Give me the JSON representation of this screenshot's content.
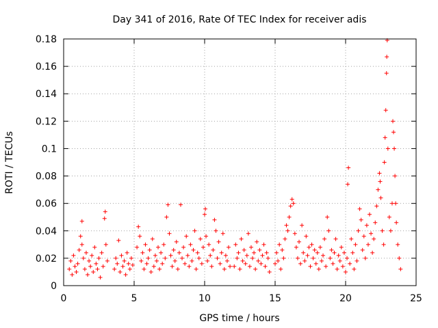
{
  "chart_data": {
    "type": "scatter",
    "title": "Day 341 of 2016, Rate Of TEC Index for receiver adis",
    "xlabel": "GPS time / hours",
    "ylabel": "ROTI / TECUs",
    "xlim": [
      0,
      25
    ],
    "ylim": [
      0,
      0.18
    ],
    "xticks": [
      0,
      5,
      10,
      15,
      20,
      25
    ],
    "yticks": [
      0,
      0.02,
      0.04,
      0.06,
      0.08,
      0.1,
      0.12,
      0.14,
      0.16,
      0.18
    ],
    "grid": true,
    "marker": "+",
    "color": "#ff0000",
    "series": [
      {
        "name": "ROTI",
        "points": [
          [
            0.4,
            0.012
          ],
          [
            0.5,
            0.018
          ],
          [
            0.6,
            0.008
          ],
          [
            0.7,
            0.022
          ],
          [
            0.8,
            0.014
          ],
          [
            0.9,
            0.01
          ],
          [
            1.0,
            0.016
          ],
          [
            1.1,
            0.026
          ],
          [
            1.2,
            0.036
          ],
          [
            1.3,
            0.047
          ],
          [
            1.3,
            0.03
          ],
          [
            1.4,
            0.02
          ],
          [
            1.5,
            0.012
          ],
          [
            1.6,
            0.024
          ],
          [
            1.7,
            0.008
          ],
          [
            1.8,
            0.018
          ],
          [
            1.9,
            0.014
          ],
          [
            2.0,
            0.022
          ],
          [
            2.1,
            0.01
          ],
          [
            2.2,
            0.028
          ],
          [
            2.3,
            0.016
          ],
          [
            2.4,
            0.012
          ],
          [
            2.5,
            0.02
          ],
          [
            2.6,
            0.006
          ],
          [
            2.7,
            0.024
          ],
          [
            2.8,
            0.014
          ],
          [
            2.9,
            0.049
          ],
          [
            2.95,
            0.054
          ],
          [
            3.0,
            0.03
          ],
          [
            3.1,
            0.018
          ],
          [
            3.6,
            0.012
          ],
          [
            3.7,
            0.02
          ],
          [
            3.8,
            0.016
          ],
          [
            3.9,
            0.033
          ],
          [
            4.0,
            0.01
          ],
          [
            4.1,
            0.022
          ],
          [
            4.2,
            0.014
          ],
          [
            4.3,
            0.018
          ],
          [
            4.4,
            0.008
          ],
          [
            4.5,
            0.024
          ],
          [
            4.6,
            0.016
          ],
          [
            4.7,
            0.012
          ],
          [
            4.8,
            0.02
          ],
          [
            4.9,
            0.015
          ],
          [
            5.2,
            0.028
          ],
          [
            5.3,
            0.043
          ],
          [
            5.4,
            0.036
          ],
          [
            5.5,
            0.018
          ],
          [
            5.6,
            0.024
          ],
          [
            5.7,
            0.012
          ],
          [
            5.8,
            0.03
          ],
          [
            5.9,
            0.016
          ],
          [
            6.0,
            0.02
          ],
          [
            6.1,
            0.026
          ],
          [
            6.2,
            0.01
          ],
          [
            6.3,
            0.034
          ],
          [
            6.4,
            0.014
          ],
          [
            6.5,
            0.022
          ],
          [
            6.6,
            0.018
          ],
          [
            6.7,
            0.028
          ],
          [
            6.8,
            0.012
          ],
          [
            6.9,
            0.024
          ],
          [
            7.0,
            0.016
          ],
          [
            7.1,
            0.03
          ],
          [
            7.2,
            0.02
          ],
          [
            7.3,
            0.05
          ],
          [
            7.4,
            0.059
          ],
          [
            7.5,
            0.038
          ],
          [
            7.6,
            0.022
          ],
          [
            7.7,
            0.014
          ],
          [
            7.8,
            0.026
          ],
          [
            7.9,
            0.018
          ],
          [
            8.0,
            0.032
          ],
          [
            8.1,
            0.012
          ],
          [
            8.2,
            0.024
          ],
          [
            8.3,
            0.059
          ],
          [
            8.4,
            0.02
          ],
          [
            8.5,
            0.028
          ],
          [
            8.6,
            0.016
          ],
          [
            8.7,
            0.036
          ],
          [
            8.8,
            0.022
          ],
          [
            8.9,
            0.014
          ],
          [
            9.0,
            0.03
          ],
          [
            9.1,
            0.018
          ],
          [
            9.2,
            0.026
          ],
          [
            9.3,
            0.04
          ],
          [
            9.4,
            0.012
          ],
          [
            9.5,
            0.024
          ],
          [
            9.6,
            0.02
          ],
          [
            9.7,
            0.034
          ],
          [
            9.8,
            0.016
          ],
          [
            9.9,
            0.028
          ],
          [
            10.0,
            0.052
          ],
          [
            10.05,
            0.056
          ],
          [
            10.1,
            0.036
          ],
          [
            10.2,
            0.018
          ],
          [
            10.3,
            0.03
          ],
          [
            10.4,
            0.022
          ],
          [
            10.5,
            0.014
          ],
          [
            10.6,
            0.026
          ],
          [
            10.7,
            0.048
          ],
          [
            10.8,
            0.04
          ],
          [
            10.9,
            0.02
          ],
          [
            11.0,
            0.032
          ],
          [
            11.1,
            0.016
          ],
          [
            11.2,
            0.024
          ],
          [
            11.3,
            0.038
          ],
          [
            11.4,
            0.012
          ],
          [
            11.5,
            0.022
          ],
          [
            11.6,
            0.018
          ],
          [
            11.7,
            0.028
          ],
          [
            11.8,
            0.014
          ],
          [
            12.1,
            0.014
          ],
          [
            12.2,
            0.03
          ],
          [
            12.3,
            0.02
          ],
          [
            12.4,
            0.024
          ],
          [
            12.5,
            0.012
          ],
          [
            12.6,
            0.034
          ],
          [
            12.7,
            0.018
          ],
          [
            12.8,
            0.026
          ],
          [
            12.9,
            0.016
          ],
          [
            13.0,
            0.022
          ],
          [
            13.1,
            0.038
          ],
          [
            13.2,
            0.014
          ],
          [
            13.3,
            0.028
          ],
          [
            13.4,
            0.02
          ],
          [
            13.5,
            0.024
          ],
          [
            13.6,
            0.012
          ],
          [
            13.7,
            0.032
          ],
          [
            13.8,
            0.018
          ],
          [
            13.9,
            0.026
          ],
          [
            14.0,
            0.016
          ],
          [
            14.1,
            0.022
          ],
          [
            14.2,
            0.03
          ],
          [
            14.3,
            0.014
          ],
          [
            14.4,
            0.024
          ],
          [
            14.5,
            0.02
          ],
          [
            14.6,
            0.01
          ],
          [
            15.0,
            0.016
          ],
          [
            15.1,
            0.024
          ],
          [
            15.2,
            0.018
          ],
          [
            15.3,
            0.03
          ],
          [
            15.4,
            0.012
          ],
          [
            15.5,
            0.026
          ],
          [
            15.6,
            0.02
          ],
          [
            15.7,
            0.034
          ],
          [
            15.8,
            0.044
          ],
          [
            15.9,
            0.04
          ],
          [
            16.0,
            0.05
          ],
          [
            16.1,
            0.058
          ],
          [
            16.2,
            0.063
          ],
          [
            16.3,
            0.06
          ],
          [
            16.4,
            0.038
          ],
          [
            16.5,
            0.028
          ],
          [
            16.6,
            0.02
          ],
          [
            16.7,
            0.032
          ],
          [
            16.8,
            0.016
          ],
          [
            16.9,
            0.044
          ],
          [
            17.0,
            0.024
          ],
          [
            17.1,
            0.018
          ],
          [
            17.2,
            0.036
          ],
          [
            17.3,
            0.022
          ],
          [
            17.4,
            0.028
          ],
          [
            17.5,
            0.014
          ],
          [
            17.6,
            0.03
          ],
          [
            17.7,
            0.02
          ],
          [
            17.8,
            0.026
          ],
          [
            17.9,
            0.016
          ],
          [
            18.0,
            0.024
          ],
          [
            18.1,
            0.012
          ],
          [
            18.2,
            0.028
          ],
          [
            18.3,
            0.018
          ],
          [
            18.4,
            0.022
          ],
          [
            18.5,
            0.034
          ],
          [
            18.6,
            0.014
          ],
          [
            18.7,
            0.05
          ],
          [
            18.8,
            0.04
          ],
          [
            18.9,
            0.02
          ],
          [
            19.0,
            0.026
          ],
          [
            19.1,
            0.016
          ],
          [
            19.2,
            0.024
          ],
          [
            19.3,
            0.034
          ],
          [
            19.4,
            0.012
          ],
          [
            19.5,
            0.022
          ],
          [
            19.6,
            0.018
          ],
          [
            19.7,
            0.028
          ],
          [
            19.8,
            0.014
          ],
          [
            19.9,
            0.024
          ],
          [
            20.0,
            0.01
          ],
          [
            20.1,
            0.02
          ],
          [
            20.15,
            0.074
          ],
          [
            20.2,
            0.086
          ],
          [
            20.3,
            0.016
          ],
          [
            20.4,
            0.034
          ],
          [
            20.5,
            0.024
          ],
          [
            20.6,
            0.012
          ],
          [
            20.7,
            0.03
          ],
          [
            20.8,
            0.018
          ],
          [
            20.9,
            0.04
          ],
          [
            21.0,
            0.056
          ],
          [
            21.1,
            0.048
          ],
          [
            21.2,
            0.026
          ],
          [
            21.3,
            0.036
          ],
          [
            21.4,
            0.02
          ],
          [
            21.5,
            0.044
          ],
          [
            21.6,
            0.03
          ],
          [
            21.7,
            0.052
          ],
          [
            21.8,
            0.038
          ],
          [
            21.9,
            0.024
          ],
          [
            22.0,
            0.034
          ],
          [
            22.1,
            0.046
          ],
          [
            22.2,
            0.058
          ],
          [
            22.3,
            0.07
          ],
          [
            22.4,
            0.082
          ],
          [
            22.45,
            0.076
          ],
          [
            22.5,
            0.064
          ],
          [
            22.6,
            0.04
          ],
          [
            22.7,
            0.03
          ],
          [
            22.75,
            0.09
          ],
          [
            22.8,
            0.108
          ],
          [
            22.85,
            0.128
          ],
          [
            22.9,
            0.155
          ],
          [
            22.92,
            0.167
          ],
          [
            22.95,
            0.179
          ],
          [
            23.0,
            0.1
          ],
          [
            23.1,
            0.05
          ],
          [
            23.2,
            0.04
          ],
          [
            23.3,
            0.06
          ],
          [
            23.35,
            0.12
          ],
          [
            23.4,
            0.112
          ],
          [
            23.45,
            0.1
          ],
          [
            23.5,
            0.08
          ],
          [
            23.55,
            0.06
          ],
          [
            23.6,
            0.046
          ],
          [
            23.7,
            0.03
          ],
          [
            23.8,
            0.02
          ],
          [
            23.9,
            0.012
          ]
        ]
      }
    ]
  }
}
